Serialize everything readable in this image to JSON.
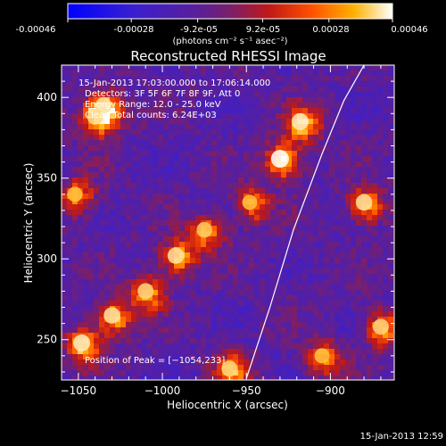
{
  "colorbar": {
    "tick_labels": [
      "-0.00046",
      "-0.00028",
      "-9.2e-05",
      "9.2e-05",
      "0.00028",
      "0.00046"
    ],
    "range": [
      -0.00046,
      0.00046
    ],
    "units": "(photons cm⁻² s⁻¹ asec⁻²)"
  },
  "chart_data": {
    "type": "heatmap",
    "title": "Reconstructed RHESSI Image",
    "xlabel": "Heliocentric X (arcsec)",
    "ylabel": "Heliocentric Y (arcsec)",
    "xlim": [
      -1060,
      -862
    ],
    "ylim": [
      225,
      420
    ],
    "x_ticks": [
      -1050,
      -1000,
      -950,
      -900
    ],
    "y_ticks": [
      250,
      300,
      350,
      400
    ],
    "x_tick_labels": [
      "−1050",
      "−1000",
      "−950",
      "−900"
    ],
    "y_tick_labels": [
      "250",
      "300",
      "350",
      "400"
    ],
    "limb_curve": [
      [
        -950,
        226
      ],
      [
        -936,
        270
      ],
      [
        -922,
        318
      ],
      [
        -905,
        365
      ],
      [
        -892,
        398
      ],
      [
        -880,
        420
      ]
    ],
    "bright_sources": [
      {
        "x": -1048,
        "y": 248,
        "level": 0.9
      },
      {
        "x": -1030,
        "y": 265,
        "level": 0.85
      },
      {
        "x": -1010,
        "y": 280,
        "level": 0.8
      },
      {
        "x": -992,
        "y": 302,
        "level": 0.85
      },
      {
        "x": -975,
        "y": 318,
        "level": 0.75
      },
      {
        "x": -948,
        "y": 335,
        "level": 0.7
      },
      {
        "x": -930,
        "y": 362,
        "level": 1.0
      },
      {
        "x": -918,
        "y": 385,
        "level": 0.9
      },
      {
        "x": -1035,
        "y": 395,
        "level": 0.85
      },
      {
        "x": -1040,
        "y": 388,
        "level": 0.8
      },
      {
        "x": -880,
        "y": 335,
        "level": 0.85
      },
      {
        "x": -870,
        "y": 258,
        "level": 0.8
      },
      {
        "x": -905,
        "y": 240,
        "level": 0.7
      },
      {
        "x": -960,
        "y": 232,
        "level": 0.8
      },
      {
        "x": -1052,
        "y": 340,
        "level": 0.7
      }
    ],
    "annotations": {
      "time": "15-Jan-2013 17:03:00.000 to 17:06:14.000",
      "detectors": "Detectors: 3F 5F 6F 7F 8F 9F, Att 0",
      "energy": "Energy Range: 12.0 - 25.0 keV",
      "clean": "Clean    Total counts: 6.24E+03",
      "peak": "Position of Peak = [−1054,233]"
    }
  },
  "footer": {
    "timestamp": "15-Jan-2013 12:59"
  }
}
